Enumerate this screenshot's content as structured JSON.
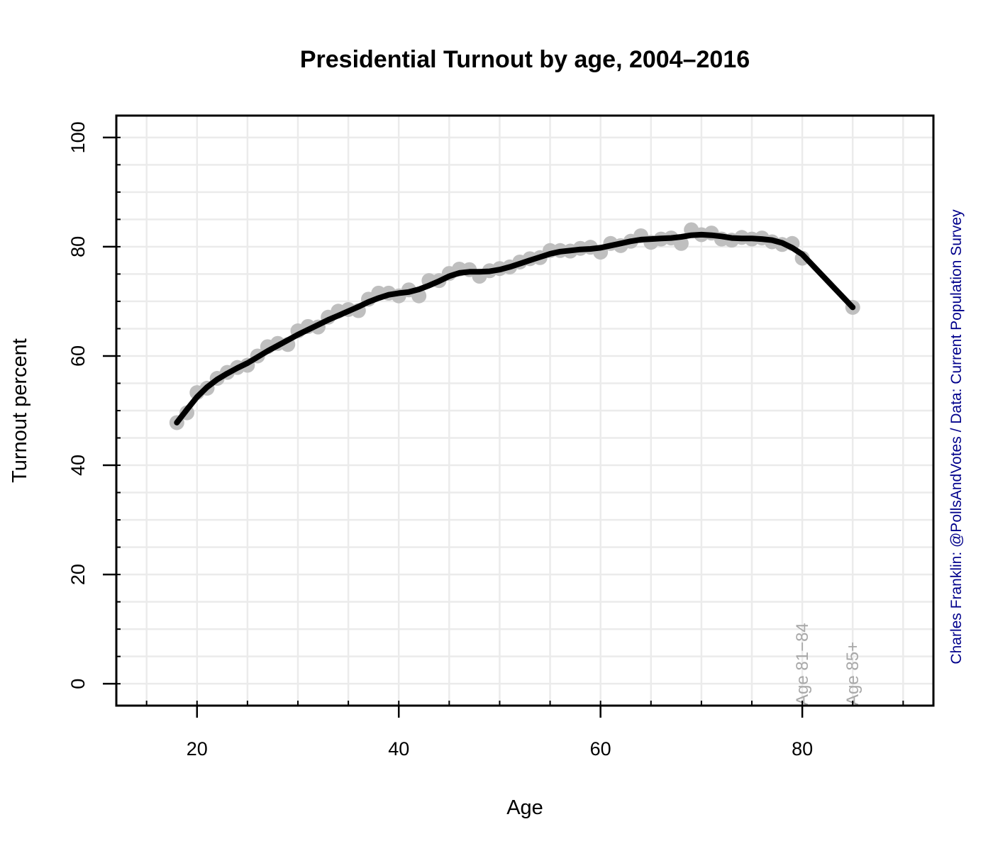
{
  "chart_data": {
    "type": "line",
    "title": "Presidential Turnout by age, 2004–2016",
    "xlabel": "Age",
    "ylabel": "Turnout percent",
    "xlim": [
      12,
      93
    ],
    "ylim": [
      -4,
      104
    ],
    "x_ticks": [
      20,
      40,
      60,
      80
    ],
    "x_tick_labels": [
      "20",
      "40",
      "60",
      "80"
    ],
    "y_ticks": [
      0,
      20,
      40,
      60,
      80,
      100
    ],
    "y_tick_labels": [
      "0",
      "20",
      "40",
      "60",
      "80",
      "100"
    ],
    "x_minor_ticks": [
      15,
      20,
      25,
      30,
      35,
      40,
      45,
      50,
      55,
      60,
      65,
      70,
      75,
      80,
      85,
      90
    ],
    "y_minor_ticks": [
      0,
      5,
      10,
      15,
      20,
      25,
      30,
      35,
      40,
      45,
      50,
      55,
      60,
      65,
      70,
      75,
      80,
      85,
      90,
      95,
      100
    ],
    "grid": true,
    "colors": {
      "points": "#bfbfbf",
      "line": "#000000",
      "grid": "#ebebeb",
      "annotation": "#a8a8a8",
      "credit": "#00008b"
    },
    "series": [
      {
        "kind": "points",
        "x": [
          18,
          19,
          20,
          21,
          22,
          23,
          24,
          25,
          26,
          27,
          28,
          29,
          30,
          31,
          32,
          33,
          34,
          35,
          36,
          37,
          38,
          39,
          40,
          41,
          42,
          43,
          44,
          45,
          46,
          47,
          48,
          49,
          50,
          51,
          52,
          53,
          54,
          55,
          56,
          57,
          58,
          59,
          60,
          61,
          62,
          63,
          64,
          65,
          66,
          67,
          68,
          69,
          70,
          71,
          72,
          73,
          74,
          75,
          76,
          77,
          78,
          79,
          80,
          85
        ],
        "y": [
          47.8,
          49.6,
          53.3,
          54.1,
          55.9,
          57.0,
          57.9,
          58.3,
          60.0,
          61.7,
          62.3,
          62.1,
          64.6,
          65.4,
          65.3,
          67.1,
          68.2,
          68.5,
          68.3,
          70.4,
          71.5,
          71.5,
          71.0,
          72.1,
          71.0,
          73.8,
          73.8,
          75.1,
          75.9,
          75.8,
          74.6,
          75.6,
          76.0,
          76.3,
          77.2,
          77.8,
          78.0,
          79.3,
          79.3,
          79.2,
          79.7,
          79.9,
          79.0,
          80.6,
          80.2,
          81.0,
          82.0,
          80.8,
          81.4,
          81.6,
          80.6,
          83.1,
          82.2,
          82.5,
          81.4,
          81.2,
          81.7,
          81.4,
          81.6,
          80.9,
          80.4,
          80.6,
          77.9,
          68.9
        ]
      },
      {
        "kind": "smooth-line",
        "x": [
          18,
          19,
          20,
          21,
          22,
          23,
          24,
          25,
          26,
          27,
          28,
          29,
          30,
          31,
          32,
          33,
          34,
          35,
          36,
          37,
          38,
          39,
          40,
          41,
          42,
          43,
          44,
          45,
          46,
          47,
          48,
          49,
          50,
          51,
          52,
          53,
          54,
          55,
          56,
          57,
          58,
          59,
          60,
          61,
          62,
          63,
          64,
          65,
          66,
          67,
          68,
          69,
          70,
          71,
          72,
          73,
          74,
          75,
          76,
          77,
          78,
          79,
          80,
          85
        ],
        "y": [
          47.8,
          50.2,
          52.5,
          54.3,
          55.7,
          56.8,
          57.8,
          58.7,
          59.8,
          60.9,
          61.9,
          62.9,
          63.9,
          64.8,
          65.7,
          66.6,
          67.4,
          68.2,
          69.0,
          69.9,
          70.6,
          71.2,
          71.5,
          71.7,
          72.2,
          72.9,
          73.7,
          74.6,
          75.2,
          75.4,
          75.4,
          75.5,
          75.8,
          76.3,
          76.9,
          77.5,
          78.1,
          78.7,
          79.1,
          79.3,
          79.5,
          79.6,
          79.8,
          80.2,
          80.6,
          81.0,
          81.3,
          81.4,
          81.5,
          81.6,
          81.8,
          82.1,
          82.2,
          82.1,
          81.9,
          81.6,
          81.5,
          81.5,
          81.4,
          81.2,
          80.7,
          79.8,
          78.6,
          68.9
        ]
      }
    ],
    "annotations": [
      {
        "text": "Age 81−84",
        "x": 80
      },
      {
        "text": "Age 85+",
        "x": 85
      }
    ],
    "credit": "Charles Franklin: @PollsAndVotes / Data: Current Population Survey"
  }
}
